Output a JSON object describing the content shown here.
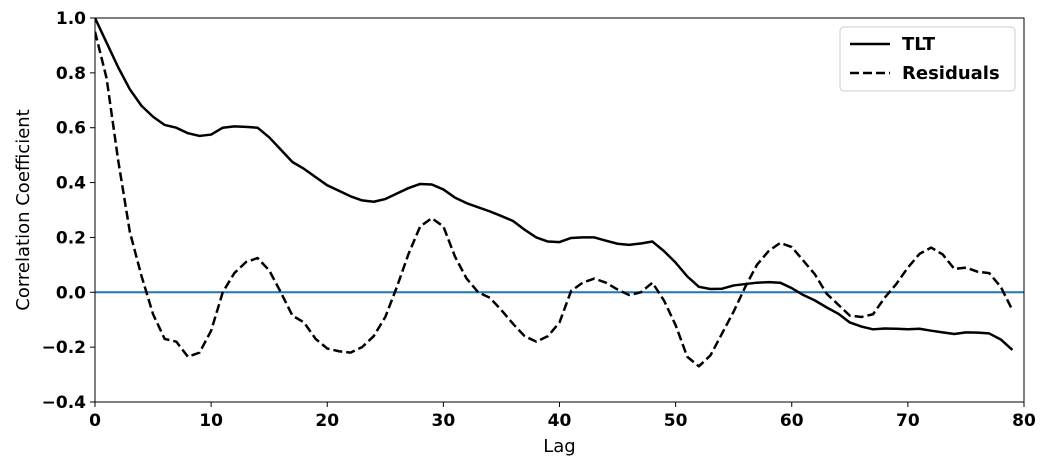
{
  "chart_data": {
    "type": "line",
    "xlabel": "Lag",
    "ylabel": "Correlation Coefficient",
    "xlim": [
      0,
      80
    ],
    "ylim": [
      -0.4,
      1.0
    ],
    "xticks": [
      "0",
      "10",
      "20",
      "30",
      "40",
      "50",
      "60",
      "70",
      "80"
    ],
    "yticks": [
      "−0.4",
      "−0.2",
      "0.0",
      "0.2",
      "0.4",
      "0.6",
      "0.8",
      "1.0"
    ],
    "grid": false,
    "legend": "top-right",
    "reference_line": {
      "y": 0.0,
      "color": "#1f77b4"
    },
    "series": [
      {
        "name": "TLT",
        "style": "solid",
        "color": "#000000",
        "values": [
          1.0,
          0.91,
          0.82,
          0.74,
          0.68,
          0.64,
          0.61,
          0.6,
          0.58,
          0.57,
          0.575,
          0.6,
          0.605,
          0.603,
          0.6,
          0.565,
          0.52,
          0.475,
          0.45,
          0.42,
          0.39,
          0.37,
          0.35,
          0.335,
          0.33,
          0.34,
          0.36,
          0.38,
          0.395,
          0.393,
          0.375,
          0.345,
          0.325,
          0.31,
          0.295,
          0.278,
          0.26,
          0.228,
          0.2,
          0.185,
          0.183,
          0.198,
          0.2,
          0.2,
          0.188,
          0.177,
          0.173,
          0.178,
          0.185,
          0.15,
          0.108,
          0.058,
          0.02,
          0.012,
          0.013,
          0.025,
          0.03,
          0.035,
          0.037,
          0.035,
          0.015,
          -0.01,
          -0.03,
          -0.055,
          -0.078,
          -0.11,
          -0.125,
          -0.135,
          -0.132,
          -0.133,
          -0.135,
          -0.133,
          -0.14,
          -0.146,
          -0.152,
          -0.146,
          -0.147,
          -0.15,
          -0.172,
          -0.21
        ]
      },
      {
        "name": "Residuals",
        "style": "dashed",
        "color": "#000000",
        "values": [
          0.95,
          0.78,
          0.48,
          0.22,
          0.06,
          -0.08,
          -0.17,
          -0.18,
          -0.235,
          -0.22,
          -0.14,
          0.0,
          0.07,
          0.11,
          0.125,
          0.08,
          0.0,
          -0.085,
          -0.11,
          -0.17,
          -0.205,
          -0.215,
          -0.22,
          -0.2,
          -0.16,
          -0.09,
          0.02,
          0.14,
          0.24,
          0.27,
          0.24,
          0.13,
          0.05,
          0.0,
          -0.02,
          -0.065,
          -0.115,
          -0.16,
          -0.18,
          -0.16,
          -0.11,
          0.005,
          0.035,
          0.05,
          0.035,
          0.01,
          -0.01,
          0.0,
          0.035,
          -0.03,
          -0.12,
          -0.235,
          -0.27,
          -0.23,
          -0.15,
          -0.07,
          0.02,
          0.1,
          0.15,
          0.18,
          0.165,
          0.115,
          0.065,
          -0.005,
          -0.045,
          -0.085,
          -0.09,
          -0.08,
          -0.02,
          0.03,
          0.09,
          0.14,
          0.163,
          0.138,
          0.085,
          0.09,
          0.075,
          0.07,
          0.02,
          -0.065
        ]
      }
    ]
  }
}
